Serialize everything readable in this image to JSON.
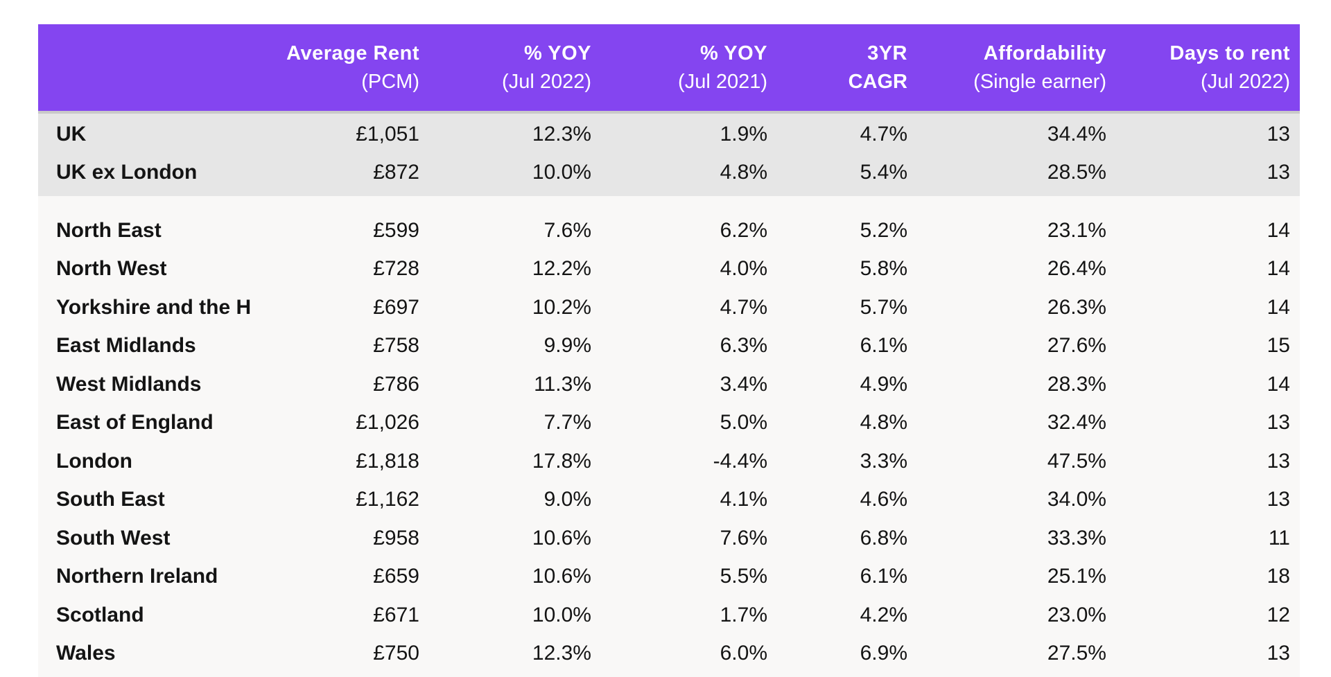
{
  "chart_data": {
    "type": "table",
    "columns": [
      {
        "line1": "",
        "line2": ""
      },
      {
        "line1": "Average Rent",
        "line2": "(PCM)"
      },
      {
        "line1": "% YOY",
        "line2": "(Jul 2022)"
      },
      {
        "line1": "% YOY",
        "line2": "(Jul 2021)"
      },
      {
        "line1": "3YR",
        "line2": "CAGR"
      },
      {
        "line1": "Affordability",
        "line2": "(Single earner)"
      },
      {
        "line1": "Days to rent",
        "line2": "(Jul 2022)"
      }
    ],
    "summary_rows": [
      [
        "UK",
        "£1,051",
        "12.3%",
        "1.9%",
        "4.7%",
        "34.4%",
        "13"
      ],
      [
        "UK ex London",
        "£872",
        "10.0%",
        "4.8%",
        "5.4%",
        "28.5%",
        "13"
      ]
    ],
    "region_rows": [
      [
        "North East",
        "£599",
        "7.6%",
        "6.2%",
        "5.2%",
        "23.1%",
        "14"
      ],
      [
        "North West",
        "£728",
        "12.2%",
        "4.0%",
        "5.8%",
        "26.4%",
        "14"
      ],
      [
        "Yorkshire and the H",
        "£697",
        "10.2%",
        "4.7%",
        "5.7%",
        "26.3%",
        "14"
      ],
      [
        "East Midlands",
        "£758",
        "9.9%",
        "6.3%",
        "6.1%",
        "27.6%",
        "15"
      ],
      [
        "West Midlands",
        "£786",
        "11.3%",
        "3.4%",
        "4.9%",
        "28.3%",
        "14"
      ],
      [
        "East of England",
        "£1,026",
        "7.7%",
        "5.0%",
        "4.8%",
        "32.4%",
        "13"
      ],
      [
        "London",
        "£1,818",
        "17.8%",
        "-4.4%",
        "3.3%",
        "47.5%",
        "13"
      ],
      [
        "South East",
        "£1,162",
        "9.0%",
        "4.1%",
        "4.6%",
        "34.0%",
        "13"
      ],
      [
        "South West",
        "£958",
        "10.6%",
        "7.6%",
        "6.8%",
        "33.3%",
        "11"
      ],
      [
        "Northern Ireland",
        "£659",
        "10.6%",
        "5.5%",
        "6.1%",
        "25.1%",
        "18"
      ],
      [
        "Scotland",
        "£671",
        "10.0%",
        "1.7%",
        "4.2%",
        "23.0%",
        "12"
      ],
      [
        "Wales",
        "£750",
        "12.3%",
        "6.0%",
        "6.9%",
        "27.5%",
        "13"
      ]
    ]
  },
  "colors": {
    "header_bg": "#8445f0",
    "summary_bg": "#e6e6e6",
    "regions_bg": "#f9f8f7"
  }
}
